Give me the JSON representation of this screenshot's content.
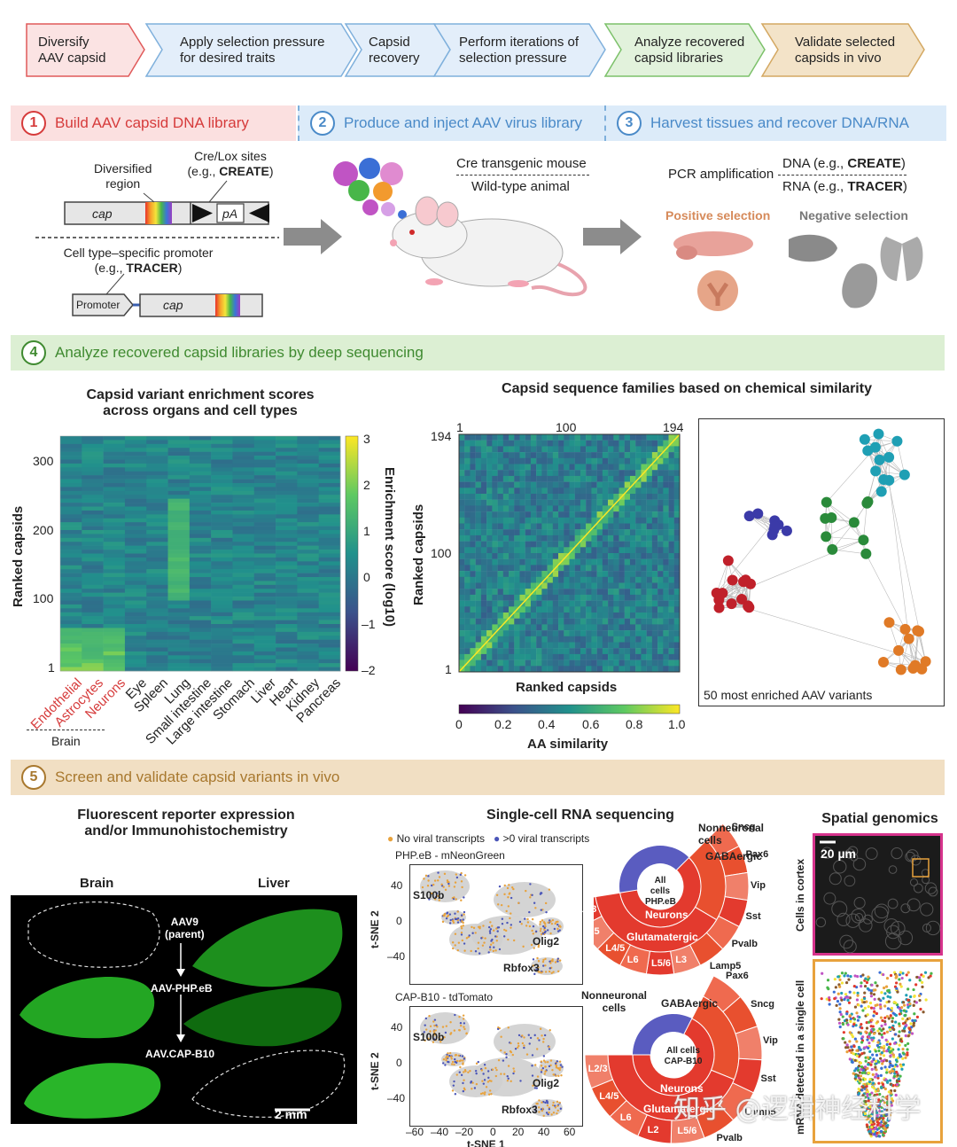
{
  "flow": [
    {
      "label1": "Diversify",
      "label2": "AAV capsid",
      "color": "#fbe3e3",
      "stroke": "#e05a5a"
    },
    {
      "label1": "Apply selection pressure",
      "label2": "for desired traits",
      "color": "#e3eefa",
      "stroke": "#7fb0dc"
    },
    {
      "label1": "Capsid",
      "label2": "recovery",
      "color": "#e3eefa",
      "stroke": "#7fb0dc"
    },
    {
      "label1": "Perform iterations of",
      "label2": "selection pressure",
      "color": "#e3eefa",
      "stroke": "#7fb0dc"
    },
    {
      "label1": "Analyze recovered",
      "label2": "capsid libraries",
      "color": "#e2f2dc",
      "stroke": "#7cc16a"
    },
    {
      "label1": "Validate selected",
      "label2": "capsids in vivo",
      "color": "#f3e3c8",
      "stroke": "#d4a862"
    }
  ],
  "step1": {
    "num": "1",
    "title": "Build AAV capsid DNA library"
  },
  "step2": {
    "num": "2",
    "title": "Produce and inject AAV virus library"
  },
  "step3": {
    "num": "3",
    "title": "Harvest tissues and recover DNA/RNA"
  },
  "step4": {
    "num": "4",
    "title": "Analyze recovered capsid libraries by deep sequencing"
  },
  "step5": {
    "num": "5",
    "title": "Screen and validate capsid variants in vivo"
  },
  "construct": {
    "diversified1": "Diversified",
    "diversified2": "region",
    "crelox1": "Cre/Lox sites",
    "crelox2a": "(e.g., ",
    "crelox2b": "CREATE",
    "crelox2c": ")",
    "cap": "cap",
    "pa": "pA",
    "celltype1": "Cell type–specific promoter",
    "celltype2a": "(e.g., ",
    "celltype2b": "TRACER",
    "celltype2c": ")",
    "promoter": "Promoter",
    "cap2": "cap"
  },
  "mouse": {
    "cre": "Cre transgenic mouse",
    "wt": "Wild-type animal"
  },
  "harvest": {
    "pcr": "PCR amplification",
    "dna_a": "DNA (e.g., ",
    "dna_b": "CREATE",
    "dna_c": ")",
    "rna_a": "RNA (e.g., ",
    "rna_b": "TRACER",
    "rna_c": ")",
    "positive": "Positive selection",
    "negative": "Negative selection"
  },
  "heatmap": {
    "title1": "Capsid variant enrichment scores",
    "title2": "across organs and cell types",
    "ylabel": "Ranked capsids",
    "yticks": [
      "300",
      "200",
      "100",
      "1"
    ],
    "cbar_label": "Enrichment score (log10)",
    "cbar_ticks": [
      "3",
      "2",
      "1",
      "0",
      "–1",
      "–2"
    ],
    "columns_red": [
      "Endothelial",
      "Astrocytes",
      "Neurons"
    ],
    "columns": [
      "Eye",
      "Spleen",
      "Lung",
      "Small intestine",
      "Large intestine",
      "Stomach",
      "Liver",
      "Heart",
      "Kidney",
      "Pancreas"
    ],
    "brain": "Brain"
  },
  "simmatrix": {
    "title": "Capsid sequence families based on chemical similarity",
    "top_ticks": [
      "1",
      "100",
      "194"
    ],
    "left_ticks": [
      "194",
      "100",
      "1"
    ],
    "ylabel": "Ranked capsids",
    "xlabel": "Ranked capsids",
    "cbar_ticks": [
      "0",
      "0.2",
      "0.4",
      "0.6",
      "0.8",
      "1.0"
    ],
    "cbar_label": "AA similarity"
  },
  "network": {
    "caption": "50 most enriched AAV variants"
  },
  "fluor": {
    "title1": "Fluorescent reporter expression",
    "title2": "and/or Immunohistochemistry",
    "brain": "Brain",
    "liver": "Liver",
    "aav9a": "AAV9",
    "aav9b": "(parent)",
    "phpeb": "AAV-PHP.eB",
    "capb10": "AAV.CAP-B10",
    "scale": "2 mm"
  },
  "scrna": {
    "title": "Single-cell RNA sequencing",
    "legend_no": "No viral transcripts",
    "legend_yes": ">0 viral transcripts",
    "panel1": "PHP.eB - mNeonGreen",
    "panel2": "CAP-B10 - tdTomato",
    "ylabel": "t-SNE 2",
    "xlabel": "t-SNE 1",
    "yticks": [
      "40",
      "0",
      "–40"
    ],
    "xticks": [
      "–60",
      "–40",
      "–20",
      "0",
      "20",
      "40",
      "60"
    ],
    "s100b": "S100b",
    "olig2": "Olig2",
    "rbfox3": "Rbfox3"
  },
  "donut1": {
    "center1": "All cells",
    "center2": "PHP.eB",
    "nonneuronal1": "Nonneuronal",
    "nonneuronal2": "cells",
    "gaba": "GABAergic",
    "neurons": "Neurons",
    "glut": "Glutamatergic",
    "labels": [
      "Sncg",
      "Pax6",
      "Vip",
      "Sst",
      "Pvalb",
      "Lamp5",
      "L3",
      "L5/6",
      "L6",
      "L4/5",
      "L5",
      "L2/3"
    ]
  },
  "donut2": {
    "center1": "All cells",
    "center2": "CAP-B10",
    "nonneuronal1": "Nonneuronal",
    "nonneuronal2": "cells",
    "gaba": "GABAergic",
    "neurons": "Neurons",
    "glut": "Glutamatergic",
    "labels": [
      "Pax6",
      "Sncg",
      "Vip",
      "Sst",
      "Lamp5",
      "Pvalb",
      "L5/6",
      "L2",
      "L6",
      "L4/5",
      "L2/3"
    ]
  },
  "spatial": {
    "title": "Spatial genomics",
    "scale": "20 µm",
    "ylabel1": "Cells in cortex",
    "ylabel2": "mRNA detected in a single cell"
  },
  "watermark": "知乎 @逻辑神经科学"
}
